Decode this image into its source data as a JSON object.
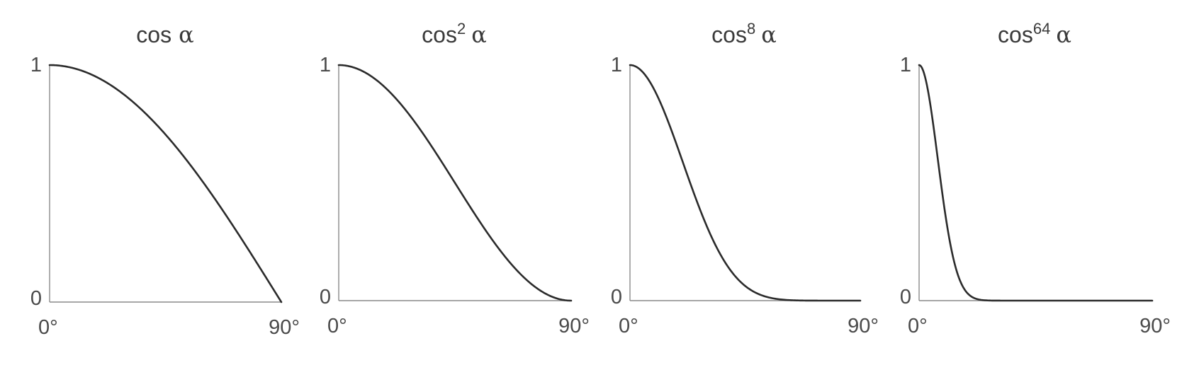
{
  "chart_data": [
    {
      "type": "line",
      "title": {
        "base": "cos",
        "sup": "",
        "greek": "α"
      },
      "exponent": 1,
      "x_ticks": [
        "0°",
        "90°"
      ],
      "y_ticks": [
        "0",
        "1"
      ],
      "xlim": [
        0,
        90
      ],
      "ylim": [
        0,
        1
      ],
      "series": [
        {
          "function": "cos(α)^1",
          "x_range": [
            0,
            90
          ]
        }
      ]
    },
    {
      "type": "line",
      "title": {
        "base": "cos",
        "sup": "2",
        "greek": "α"
      },
      "exponent": 2,
      "x_ticks": [
        "0°",
        "90°"
      ],
      "y_ticks": [
        "0",
        "1"
      ],
      "xlim": [
        0,
        90
      ],
      "ylim": [
        0,
        1
      ],
      "series": [
        {
          "function": "cos(α)^2",
          "x_range": [
            0,
            90
          ]
        }
      ]
    },
    {
      "type": "line",
      "title": {
        "base": "cos",
        "sup": "8",
        "greek": "α"
      },
      "exponent": 8,
      "x_ticks": [
        "0°",
        "90°"
      ],
      "y_ticks": [
        "0",
        "1"
      ],
      "xlim": [
        0,
        90
      ],
      "ylim": [
        0,
        1
      ],
      "series": [
        {
          "function": "cos(α)^8",
          "x_range": [
            0,
            90
          ]
        }
      ]
    },
    {
      "type": "line",
      "title": {
        "base": "cos",
        "sup": "64",
        "greek": "α"
      },
      "exponent": 64,
      "x_ticks": [
        "0°",
        "90°"
      ],
      "y_ticks": [
        "0",
        "1"
      ],
      "xlim": [
        0,
        90
      ],
      "ylim": [
        0,
        1
      ],
      "series": [
        {
          "function": "cos(α)^64",
          "x_range": [
            0,
            90
          ]
        }
      ]
    }
  ],
  "colors": {
    "curve": "#2b2b2b",
    "axis": "#8a8a8a",
    "text": "#3a3a3a"
  }
}
